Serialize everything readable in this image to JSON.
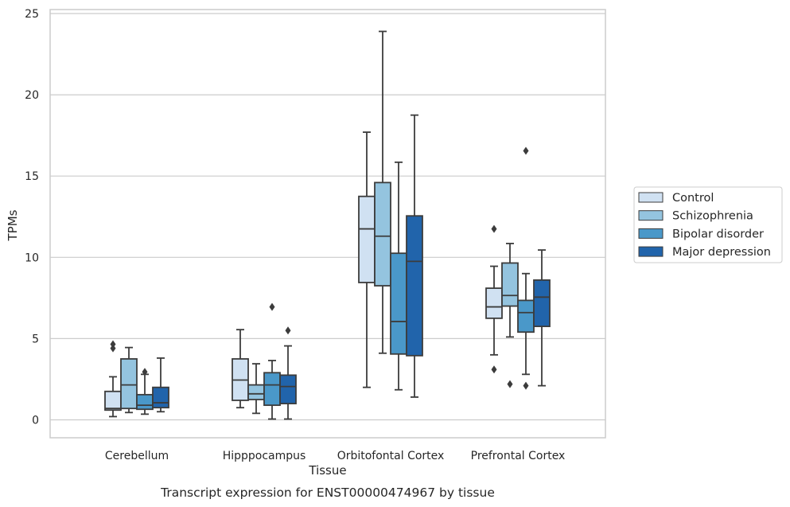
{
  "caption": "Transcript expression for ENST00000474967 by tissue",
  "chart_data": {
    "type": "box",
    "xlabel": "Tissue",
    "ylabel": "TPMs",
    "ylim": [
      -1.1,
      25.3
    ],
    "yticks": [
      0,
      5,
      10,
      15,
      20,
      25
    ],
    "grid": "horizontal",
    "legend_position": "right",
    "categories": [
      "Cerebellum",
      "Hipppocampus",
      "Orbitofontal Cortex",
      "Prefrontal Cortex"
    ],
    "series": [
      {
        "name": "Control",
        "color": "#d0e1f2",
        "boxes": [
          {
            "whislo": 0.2,
            "q1": 0.6,
            "med": 0.7,
            "q3": 1.75,
            "whishi": 2.65,
            "fliers": [
              4.4,
              4.65
            ]
          },
          {
            "whislo": 0.75,
            "q1": 1.2,
            "med": 2.45,
            "q3": 3.75,
            "whishi": 5.55,
            "fliers": []
          },
          {
            "whislo": 2.0,
            "q1": 8.45,
            "med": 11.75,
            "q3": 13.75,
            "whishi": 17.7,
            "fliers": []
          },
          {
            "whislo": 4.0,
            "q1": 6.25,
            "med": 6.95,
            "q3": 8.1,
            "whishi": 9.45,
            "fliers": [
              3.1,
              11.75
            ]
          }
        ]
      },
      {
        "name": "Schizophrenia",
        "color": "#94c4df",
        "boxes": [
          {
            "whislo": 0.45,
            "q1": 0.7,
            "med": 2.15,
            "q3": 3.75,
            "whishi": 4.45,
            "fliers": []
          },
          {
            "whislo": 0.4,
            "q1": 1.25,
            "med": 1.6,
            "q3": 2.15,
            "whishi": 3.45,
            "fliers": []
          },
          {
            "whislo": 4.1,
            "q1": 8.25,
            "med": 11.3,
            "q3": 14.6,
            "whishi": 23.9,
            "fliers": []
          },
          {
            "whislo": 5.1,
            "q1": 7.0,
            "med": 7.65,
            "q3": 9.65,
            "whishi": 10.85,
            "fliers": [
              2.2
            ]
          }
        ]
      },
      {
        "name": "Bipolar disorder",
        "color": "#4a98c9",
        "boxes": [
          {
            "whislo": 0.35,
            "q1": 0.65,
            "med": 0.9,
            "q3": 1.55,
            "whishi": 2.8,
            "fliers": [
              2.95
            ]
          },
          {
            "whislo": 0.05,
            "q1": 0.9,
            "med": 2.15,
            "q3": 2.9,
            "whishi": 3.65,
            "fliers": [
              6.95
            ]
          },
          {
            "whislo": 1.85,
            "q1": 4.05,
            "med": 6.05,
            "q3": 10.25,
            "whishi": 15.85,
            "fliers": []
          },
          {
            "whislo": 2.8,
            "q1": 5.4,
            "med": 6.6,
            "q3": 7.35,
            "whishi": 9.0,
            "fliers": [
              2.1,
              16.55
            ]
          }
        ]
      },
      {
        "name": "Major depression",
        "color": "#2164ab",
        "boxes": [
          {
            "whislo": 0.5,
            "q1": 0.75,
            "med": 1.05,
            "q3": 2.0,
            "whishi": 3.8,
            "fliers": []
          },
          {
            "whislo": 0.05,
            "q1": 1.0,
            "med": 2.05,
            "q3": 2.75,
            "whishi": 4.55,
            "fliers": [
              5.5
            ]
          },
          {
            "whislo": 1.4,
            "q1": 3.95,
            "med": 9.75,
            "q3": 12.55,
            "whishi": 18.75,
            "fliers": []
          },
          {
            "whislo": 2.1,
            "q1": 5.75,
            "med": 7.55,
            "q3": 8.6,
            "whishi": 10.45,
            "fliers": []
          }
        ]
      }
    ]
  }
}
